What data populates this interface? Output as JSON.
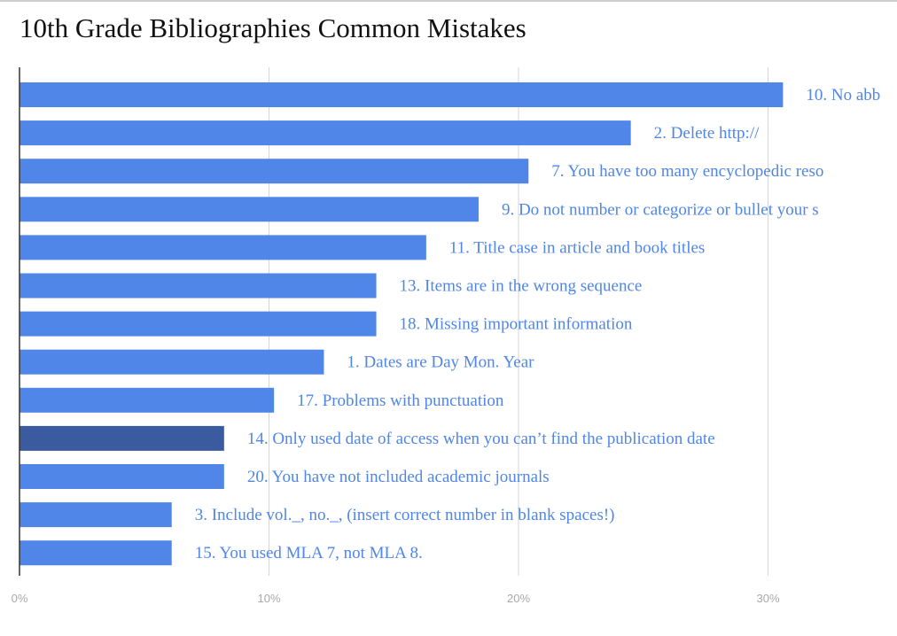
{
  "chart_data": {
    "type": "bar",
    "orientation": "horizontal",
    "title": "10th Grade Bibliographies Common Mistakes",
    "xlabel": "",
    "ylabel": "",
    "xlim": [
      0,
      35
    ],
    "x_ticks": [
      "0%",
      "10%",
      "20%",
      "30%"
    ],
    "x_tick_values": [
      0,
      10,
      20,
      30
    ],
    "grid": true,
    "categories": [
      "10. No abb",
      "2. Delete http://",
      "7. You have too many encyclopedic reso",
      "9. Do not number or categorize or bullet your s",
      "11. Title case in article and book titles",
      "13. Items are in the wrong sequence",
      "18. Missing important information",
      "1. Dates are Day Mon. Year",
      "17. Problems with punctuation",
      "14. Only used date of access when you can’t find the publication date",
      "20. You have not included academic journals",
      "3. Include vol._, no._, (insert correct number in blank spaces!)",
      "15. You used MLA 7, not MLA 8."
    ],
    "values": [
      30.6,
      24.5,
      20.4,
      18.4,
      16.3,
      14.3,
      14.3,
      12.2,
      10.2,
      8.2,
      8.2,
      6.1,
      6.1
    ],
    "highlight_index": 9,
    "colors": {
      "bar": "#4f86e8",
      "bar_highlight": "#3a5ba0",
      "label": "#4f86e8",
      "grid": "#d6d6d6",
      "axis": "#333333"
    }
  }
}
